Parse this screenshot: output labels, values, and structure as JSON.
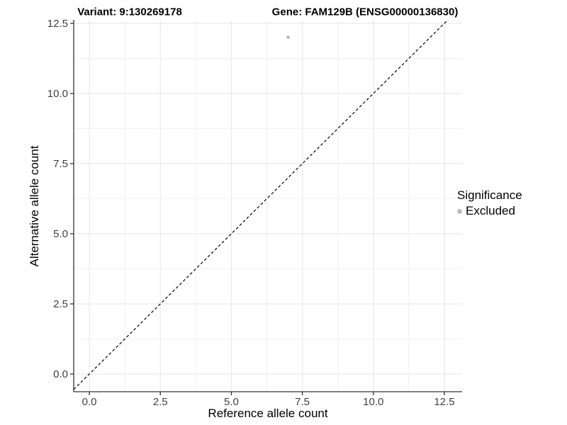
{
  "header": {
    "variant_title": "Variant: 9:130269178",
    "gene_title": "Gene: FAM129B (ENSG00000136830)"
  },
  "chart_data": {
    "type": "scatter",
    "title": "Variant: 9:130269178  Gene: FAM129B (ENSG00000136830)",
    "xlabel": "Reference allele count",
    "ylabel": "Alternative allele count",
    "x_axis": {
      "tick_values": [
        0,
        2.5,
        5,
        7.5,
        10,
        12.5
      ],
      "tick_labels": [
        "0.0",
        "2.5",
        "5.0",
        "7.5",
        "10.0",
        "12.5"
      ],
      "minor_tick_values": [
        1.25,
        3.75,
        6.25,
        8.75,
        11.25
      ],
      "range": [
        -0.55,
        13.125
      ]
    },
    "y_axis": {
      "tick_values": [
        0,
        2.5,
        5,
        7.5,
        10,
        12.5
      ],
      "tick_labels": [
        "0.0",
        "2.5",
        "5.0",
        "7.5",
        "10.0",
        "12.5"
      ],
      "minor_tick_values": [
        1.25,
        3.75,
        6.25,
        8.75,
        11.25
      ],
      "range": [
        -0.631,
        12.626
      ]
    },
    "points": [
      {
        "x": 7,
        "y": 12,
        "significance": "Excluded",
        "color": "#bdbdbd",
        "radius": 2.5
      }
    ],
    "identity_line": {
      "style": "dashed",
      "color": "#000000",
      "slope": 1,
      "intercept": 0
    },
    "legend": {
      "title": "Significance",
      "position": "right",
      "items": [
        {
          "label": "Excluded",
          "color": "#bdbdbd"
        }
      ]
    },
    "grid": {
      "major_color": "#e5e5e5",
      "minor_color": "#f1f1f1",
      "background": "#ffffff"
    },
    "axis_color": "#333333",
    "tick_label_color": "#404040",
    "tick_label_size": 15
  }
}
